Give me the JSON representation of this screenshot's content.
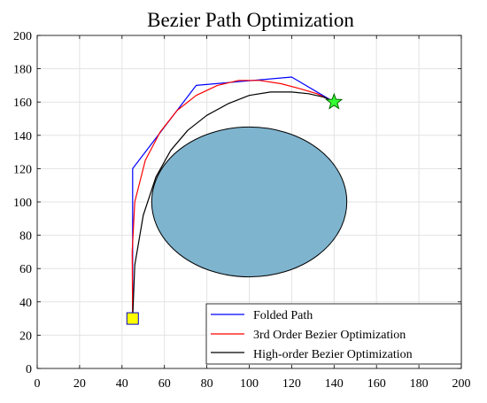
{
  "chart_data": {
    "type": "line",
    "title": "Bezier Path Optimization",
    "xlabel": "",
    "ylabel": "",
    "xlim": [
      0,
      200
    ],
    "ylim": [
      0,
      200
    ],
    "xticks": [
      0,
      20,
      40,
      60,
      80,
      100,
      120,
      140,
      160,
      180,
      200
    ],
    "yticks": [
      0,
      20,
      40,
      60,
      80,
      100,
      120,
      140,
      160,
      180,
      200
    ],
    "grid": true,
    "legend_position": "bottom-right",
    "obstacle": {
      "shape": "ellipse",
      "center": [
        100,
        100
      ],
      "radius_x": 46,
      "radius_y": 45,
      "fill": "#7fb4cf",
      "stroke": "#000000"
    },
    "start": {
      "x": 45,
      "y": 30,
      "marker": "square",
      "fill": "#ffff00",
      "stroke": "#0000cc"
    },
    "goal": {
      "x": 140,
      "y": 160,
      "marker": "star",
      "fill": "#33ff33",
      "stroke": "#006600"
    },
    "series": [
      {
        "name": "Folded Path",
        "color": "#0000ff",
        "x": [
          45,
          45,
          75,
          120,
          140
        ],
        "y": [
          30,
          120,
          170,
          175,
          160
        ]
      },
      {
        "name": "3rd Order Bezier Optimization",
        "color": "#ff0000",
        "x": [
          45,
          44.8,
          46,
          51,
          58,
          66,
          75,
          85,
          95,
          105,
          115,
          124,
          132,
          140
        ],
        "y": [
          30,
          70,
          100,
          125,
          142,
          155,
          164,
          170,
          173,
          173,
          171,
          168,
          165,
          160
        ]
      },
      {
        "name": "High-order Bezier Optimization",
        "color": "#000000",
        "x": [
          45,
          46,
          50,
          56,
          63,
          71,
          80,
          90,
          100,
          110,
          120,
          128,
          135,
          140
        ],
        "y": [
          30,
          62,
          92,
          115,
          131,
          143,
          152,
          159,
          164,
          166,
          166,
          165,
          163,
          160
        ]
      }
    ]
  }
}
